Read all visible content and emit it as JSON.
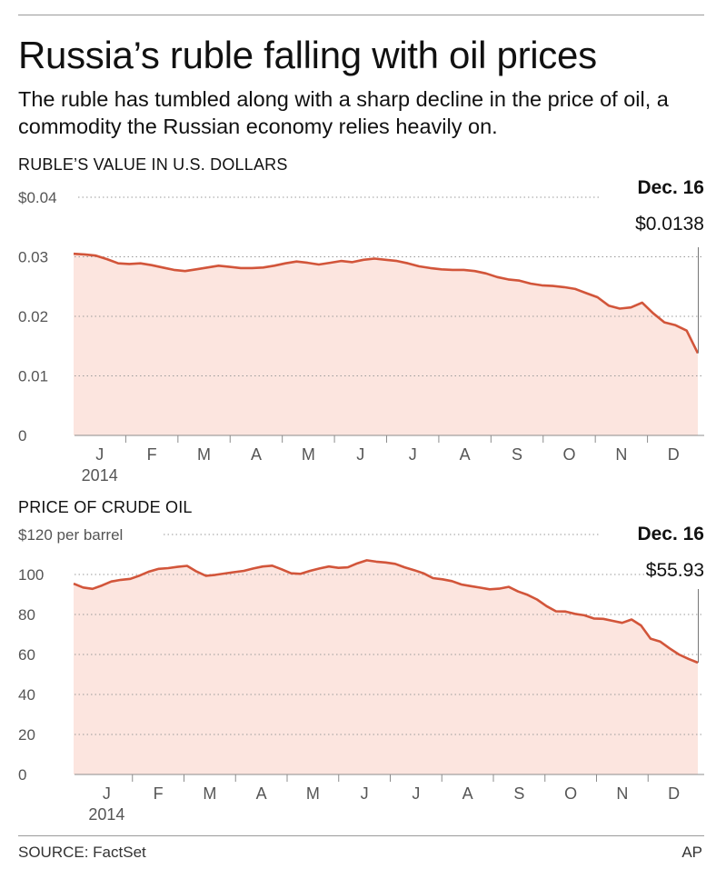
{
  "headline": "Russia’s ruble falling with oil prices",
  "deck": "The ruble has tumbled along with a sharp decline in the price of oil, a commodity the Russian economy relies heavily on.",
  "colors": {
    "line": "#d2553a",
    "fill": "#fce5df",
    "grid": "#9a9a9a",
    "axis_text": "#555555"
  },
  "chart_data": [
    {
      "type": "area",
      "title": "RUBLE’S VALUE IN U.S. DOLLARS",
      "ylim": [
        0,
        0.04
      ],
      "yticks": [
        0,
        0.01,
        0.02,
        0.03,
        0.04
      ],
      "ytick_labels": [
        "0",
        "0.01",
        "0.02",
        "0.03",
        "$0.04"
      ],
      "xticks": [
        "J",
        "F",
        "M",
        "A",
        "M",
        "J",
        "J",
        "A",
        "S",
        "O",
        "N",
        "D"
      ],
      "xyear": "2014",
      "callout": {
        "date": "Dec. 16",
        "value_label": "$0.0138",
        "value": 0.0138
      },
      "series": [
        {
          "values": [
            0.0305,
            0.0304,
            0.0302,
            0.0296,
            0.0289,
            0.0288,
            0.0289,
            0.0286,
            0.0282,
            0.0278,
            0.0276,
            0.0279,
            0.0282,
            0.0285,
            0.0283,
            0.0281,
            0.0281,
            0.0282,
            0.0285,
            0.0289,
            0.0292,
            0.029,
            0.0287,
            0.029,
            0.0293,
            0.0291,
            0.0295,
            0.0297,
            0.0295,
            0.0293,
            0.0289,
            0.0284,
            0.0281,
            0.0279,
            0.0278,
            0.0278,
            0.0276,
            0.0272,
            0.0266,
            0.0262,
            0.026,
            0.0255,
            0.0252,
            0.0251,
            0.0249,
            0.0246,
            0.0239,
            0.0232,
            0.0218,
            0.0213,
            0.0215,
            0.0223,
            0.0205,
            0.019,
            0.0185,
            0.0176,
            0.0138
          ]
        }
      ]
    },
    {
      "type": "area",
      "title": "PRICE OF CRUDE OIL",
      "ylim": [
        0,
        120
      ],
      "yticks": [
        0,
        20,
        40,
        60,
        80,
        100,
        120
      ],
      "ytick_labels": [
        "0",
        "20",
        "40",
        "60",
        "80",
        "100",
        "$120 per barrel"
      ],
      "xticks": [
        "J",
        "F",
        "M",
        "A",
        "M",
        "J",
        "J",
        "A",
        "S",
        "O",
        "N",
        "D"
      ],
      "xyear": "2014",
      "callout": {
        "date": "Dec. 16",
        "value_label": "$55.93",
        "value": 55.93
      },
      "series": [
        {
          "values": [
            95.4,
            93.5,
            92.8,
            94.5,
            96.5,
            97.3,
            97.8,
            99.5,
            101.5,
            102.8,
            103.2,
            103.8,
            104.3,
            101.5,
            99.3,
            99.8,
            100.5,
            101.2,
            101.8,
            103.0,
            104.0,
            104.4,
            102.6,
            100.6,
            100.3,
            101.8,
            103.0,
            104.0,
            103.3,
            103.6,
            105.6,
            107.1,
            106.4,
            106.0,
            105.3,
            103.6,
            102.2,
            100.6,
            98.2,
            97.6,
            96.7,
            95.0,
            94.2,
            93.4,
            92.6,
            92.9,
            93.8,
            91.5,
            89.8,
            87.5,
            84.2,
            81.6,
            81.5,
            80.3,
            79.6,
            78.0,
            77.8,
            76.8,
            75.8,
            77.5,
            74.5,
            67.9,
            66.5,
            63.1,
            60.0,
            57.8,
            55.93
          ]
        }
      ]
    }
  ],
  "footer": {
    "source": "SOURCE: FactSet",
    "credit": "AP"
  }
}
